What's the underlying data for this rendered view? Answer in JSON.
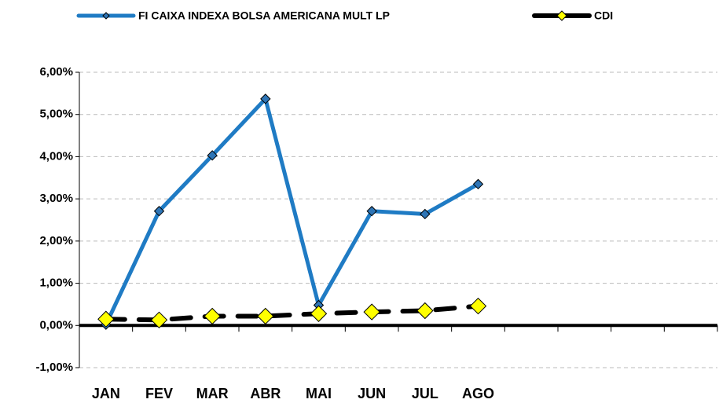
{
  "chart_data": {
    "type": "line",
    "categories": [
      "JAN",
      "FEV",
      "MAR",
      "ABR",
      "MAI",
      "JUN",
      "JUL",
      "AGO",
      null,
      null,
      null,
      null
    ],
    "series": [
      {
        "name": "FI CAIXA INDEXA BOLSA AMERICANA MULT LP",
        "color": "#1f7bc4",
        "marker_color": "#2e75b6",
        "values": [
          0.02,
          2.71,
          4.03,
          5.37,
          0.48,
          2.71,
          2.64,
          3.35,
          null,
          null,
          null,
          null
        ]
      },
      {
        "name": "CDI",
        "color": "#000000",
        "marker_color": "#ffff00",
        "values": [
          0.15,
          0.13,
          0.22,
          0.22,
          0.28,
          0.32,
          0.35,
          0.46,
          null,
          null,
          null,
          null
        ]
      }
    ],
    "ylim": [
      -1,
      6
    ],
    "yticks": [
      {
        "value": -1,
        "label": "-1,00%"
      },
      {
        "value": 0,
        "label": "0,00%"
      },
      {
        "value": 1,
        "label": "1,00%"
      },
      {
        "value": 2,
        "label": "2,00%"
      },
      {
        "value": 3,
        "label": "3,00%"
      },
      {
        "value": 4,
        "label": "4,00%"
      },
      {
        "value": 5,
        "label": "5,00%"
      },
      {
        "value": 6,
        "label": "6,00%"
      }
    ],
    "grid": true,
    "legend": "top"
  }
}
